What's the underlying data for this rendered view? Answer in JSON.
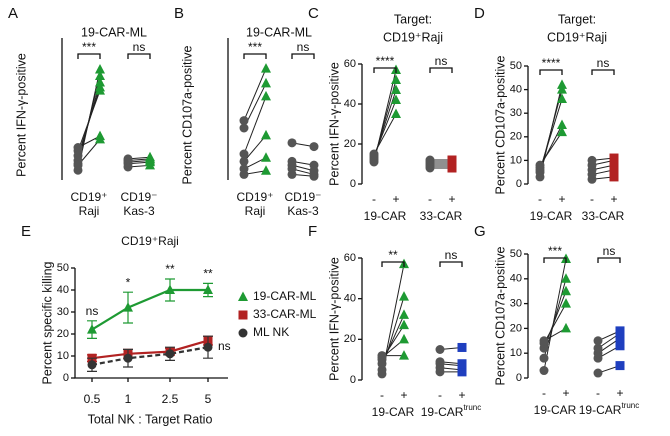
{
  "chart_data": [
    {
      "type": "paired",
      "panel": "A",
      "title": [
        "19-CAR-ML"
      ],
      "ylabel": "Percent IFN-γ-positive",
      "ylim": [
        0,
        80
      ],
      "groups": [
        {
          "labels": [
            "CD19⁺",
            "Raji"
          ],
          "start": [
            6,
            10,
            12,
            15,
            18,
            20,
            9
          ],
          "end": [
            68,
            64,
            60,
            57,
            55,
            27,
            25
          ],
          "start_color": "#555555",
          "end_color": "#1e9a33",
          "start_marker": "circle",
          "end_marker": "triangle",
          "sig": "***"
        },
        {
          "labels": [
            "CD19⁻",
            "Kas-3"
          ],
          "start": [
            8,
            10,
            11,
            12,
            13
          ],
          "end": [
            9,
            11,
            12,
            13,
            14
          ],
          "start_color": "#555555",
          "end_color": "#1e9a33",
          "start_marker": "circle",
          "end_marker": "triangle",
          "sig": "ns"
        }
      ]
    },
    {
      "type": "paired",
      "panel": "B",
      "title": [
        "19-CAR-ML"
      ],
      "ylabel": "Percent CD107a-positive",
      "ylim": [
        0,
        70
      ],
      "groups": [
        {
          "labels": [
            "CD19⁺",
            "Raji"
          ],
          "start": [
            3,
            6,
            10,
            14,
            28,
            32
          ],
          "end": [
            5,
            12,
            24,
            45,
            52,
            60
          ],
          "start_color": "#555555",
          "end_color": "#1e9a33",
          "start_marker": "circle",
          "end_marker": "triangle",
          "sig": "***"
        },
        {
          "labels": [
            "CD19⁻",
            "Kas-3"
          ],
          "start": [
            3,
            6,
            8,
            10,
            20
          ],
          "end": [
            2,
            3,
            5,
            8,
            18
          ],
          "start_color": "#555555",
          "end_color": "#555555",
          "start_marker": "circle",
          "end_marker": "circle",
          "sig": "ns"
        }
      ]
    },
    {
      "type": "paired",
      "panel": "C",
      "title": [
        "Target:",
        "CD19⁺Raji"
      ],
      "ylabel": "Percent IFN-γ-positive",
      "ylim": [
        0,
        60
      ],
      "yticks": [
        0,
        20,
        40,
        60
      ],
      "pair_ticks": [
        "-",
        "+"
      ],
      "groups": [
        {
          "labels": [
            "19-CAR"
          ],
          "start": [
            11,
            12,
            13,
            14,
            15
          ],
          "end": [
            57,
            52,
            47,
            42,
            35
          ],
          "start_color": "#555555",
          "end_color": "#1e9a33",
          "start_marker": "circle",
          "end_marker": "triangle",
          "sig": "****"
        },
        {
          "labels": [
            "33-CAR"
          ],
          "start": [
            8,
            9,
            10,
            11,
            12
          ],
          "end": [
            8,
            9,
            10,
            11,
            12
          ],
          "start_color": "#555555",
          "end_color": "#b22222",
          "start_marker": "circle",
          "end_marker": "square",
          "sig": "ns"
        }
      ]
    },
    {
      "type": "paired",
      "panel": "D",
      "title": [
        "Target:",
        "CD19⁺Raji"
      ],
      "ylabel": "Percent CD107a-positive",
      "ylim": [
        0,
        50
      ],
      "yticks": [
        0,
        10,
        20,
        30,
        40,
        50
      ],
      "pair_ticks": [
        "-",
        "+"
      ],
      "groups": [
        {
          "labels": [
            "19-CAR"
          ],
          "start": [
            3,
            5,
            6,
            7,
            8
          ],
          "end": [
            42,
            40,
            36,
            25,
            22
          ],
          "start_color": "#555555",
          "end_color": "#1e9a33",
          "start_marker": "circle",
          "end_marker": "triangle",
          "sig": "****"
        },
        {
          "labels": [
            "33-CAR"
          ],
          "start": [
            2,
            4,
            6,
            8,
            10
          ],
          "end": [
            3,
            6,
            8,
            10,
            11
          ],
          "start_color": "#555555",
          "end_color": "#b22222",
          "start_marker": "circle",
          "end_marker": "square",
          "sig": "ns"
        }
      ]
    },
    {
      "type": "line",
      "panel": "E",
      "title": "CD19⁺Raji",
      "xlabel": "Total NK : Target Ratio",
      "ylabel": "Percent specific killing",
      "categories": [
        "0.5",
        "1",
        "2.5",
        "5"
      ],
      "ylim": [
        0,
        50
      ],
      "yticks": [
        0,
        10,
        20,
        30,
        40,
        50
      ],
      "series": [
        {
          "name": "19-CAR-ML",
          "color": "#1e9a33",
          "marker": "triangle",
          "values": [
            22,
            32,
            40,
            40
          ],
          "errors": [
            4,
            7,
            5,
            3
          ]
        },
        {
          "name": "33-CAR-ML",
          "color": "#b22222",
          "marker": "square",
          "values": [
            9,
            11,
            12,
            17
          ],
          "errors": [
            1.5,
            2,
            1.5,
            2
          ]
        },
        {
          "name": "ML NK",
          "color": "#333333",
          "marker": "circle",
          "dashed": true,
          "values": [
            6,
            9,
            11,
            14
          ],
          "errors": [
            3,
            4,
            3,
            5
          ]
        }
      ],
      "annotations": [
        "ns",
        "*",
        "**",
        "**"
      ],
      "end_annotation": "ns",
      "legend": "right"
    },
    {
      "type": "paired",
      "panel": "F",
      "ylabel": "Percent IFN-γ-positive",
      "ylim": [
        0,
        60
      ],
      "yticks": [
        0,
        20,
        40,
        60
      ],
      "pair_ticks": [
        "-",
        "+"
      ],
      "groups": [
        {
          "labels": [
            "19-CAR"
          ],
          "start": [
            3,
            5,
            8,
            10,
            11,
            12
          ],
          "end": [
            57,
            41,
            32,
            27,
            20,
            12
          ],
          "start_color": "#555555",
          "end_color": "#1e9a33",
          "start_marker": "circle",
          "end_marker": "triangle",
          "sig": "**"
        },
        {
          "labels": [
            "19-CAR"
          ],
          "label_sup": "trunc",
          "start": [
            4,
            6,
            8,
            9,
            15
          ],
          "end": [
            4,
            5,
            7,
            8,
            16
          ],
          "start_color": "#555555",
          "end_color": "#1f3fbf",
          "start_marker": "circle",
          "end_marker": "square",
          "sig": "ns"
        }
      ]
    },
    {
      "type": "paired",
      "panel": "G",
      "ylabel": "Percent CD107a-positive",
      "ylim": [
        0,
        50
      ],
      "yticks": [
        0,
        10,
        20,
        30,
        40,
        50
      ],
      "pair_ticks": [
        "-",
        "+"
      ],
      "groups": [
        {
          "labels": [
            "19-CAR"
          ],
          "start": [
            3,
            8,
            12,
            14,
            15
          ],
          "end": [
            48,
            40,
            35,
            30,
            20
          ],
          "start_color": "#555555",
          "end_color": "#1e9a33",
          "start_marker": "circle",
          "end_marker": "triangle",
          "sig": "***"
        },
        {
          "labels": [
            "19-CAR"
          ],
          "label_sup": "trunc",
          "start": [
            2,
            8,
            10,
            12,
            15
          ],
          "end": [
            5,
            13,
            16,
            18,
            19
          ],
          "start_color": "#555555",
          "end_color": "#1f3fbf",
          "start_marker": "circle",
          "end_marker": "square",
          "sig": "ns"
        }
      ]
    }
  ]
}
